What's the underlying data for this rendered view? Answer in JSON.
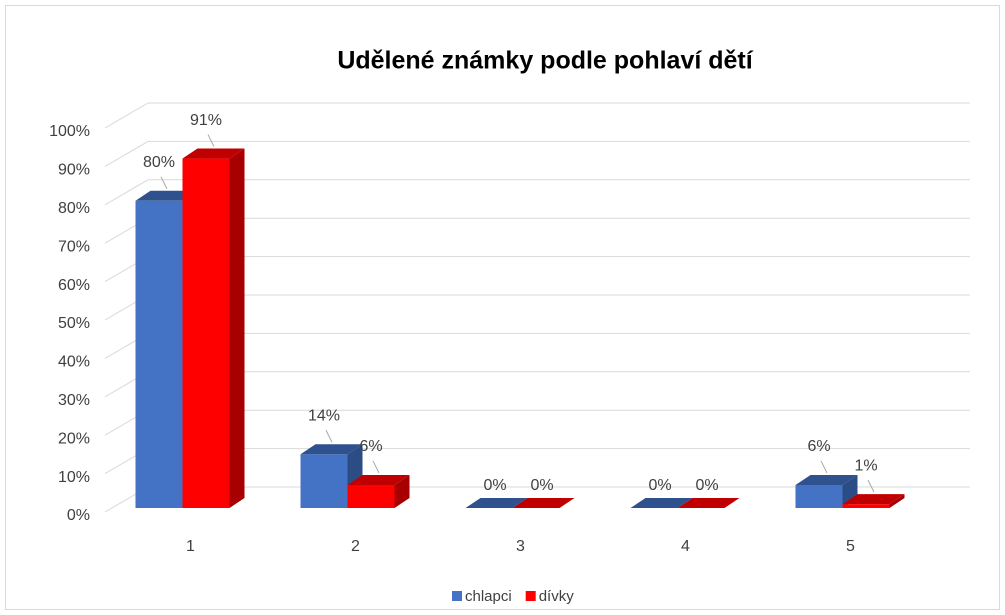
{
  "chart_data": {
    "type": "bar3d",
    "title": "Udělené známky podle pohlaví dětí",
    "categories": [
      "1",
      "2",
      "3",
      "4",
      "5"
    ],
    "series": [
      {
        "name": "chlapci",
        "color": "#4472c4",
        "values": [
          80,
          14,
          0,
          0,
          6
        ],
        "value_labels": [
          "80%",
          "14%",
          "0%",
          "0%",
          "6%"
        ]
      },
      {
        "name": "dívky",
        "color": "#ff0000",
        "values": [
          91,
          6,
          0,
          0,
          1
        ],
        "value_labels": [
          "91%",
          "6%",
          "0%",
          "0%",
          "1%"
        ]
      }
    ],
    "ylim": [
      0,
      100
    ],
    "yticks": [
      {
        "value": 0,
        "label": "0%"
      },
      {
        "value": 10,
        "label": "10%"
      },
      {
        "value": 20,
        "label": "20%"
      },
      {
        "value": 30,
        "label": "30%"
      },
      {
        "value": 40,
        "label": "40%"
      },
      {
        "value": 50,
        "label": "50%"
      },
      {
        "value": 60,
        "label": "60%"
      },
      {
        "value": 70,
        "label": "70%"
      },
      {
        "value": 80,
        "label": "80%"
      },
      {
        "value": 90,
        "label": "90%"
      },
      {
        "value": 100,
        "label": "100%"
      }
    ],
    "grid": true,
    "legend": "bottom"
  }
}
